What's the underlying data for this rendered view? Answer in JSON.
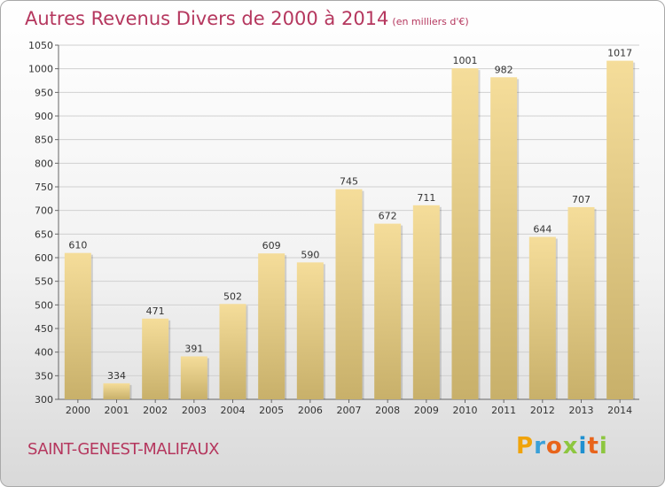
{
  "title": "Autres Revenus Divers de 2000 à 2014",
  "subtitle": "(en milliers d'€)",
  "town": "SAINT-GENEST-MALIFAUX",
  "logo": {
    "letters": [
      "P",
      "r",
      "o",
      "x",
      "i",
      "t",
      "i"
    ],
    "colors": [
      "#f0a30a",
      "#3aa0d8",
      "#e8641b",
      "#8dc63f",
      "#1e90d0",
      "#e8641b",
      "#8dc63f"
    ]
  },
  "colors": {
    "title": "#b5375e",
    "bar_light": "#f5dd9a",
    "bar_dark": "#c8b06a",
    "grid": "#d0d0d0"
  },
  "chart_data": {
    "type": "bar",
    "categories": [
      "2000",
      "2001",
      "2002",
      "2003",
      "2004",
      "2005",
      "2006",
      "2007",
      "2008",
      "2009",
      "2010",
      "2011",
      "2012",
      "2013",
      "2014"
    ],
    "values": [
      610,
      334,
      471,
      391,
      502,
      609,
      590,
      745,
      672,
      711,
      1001,
      982,
      644,
      707,
      1017
    ],
    "ylim": [
      300,
      1050
    ],
    "yticks": [
      300,
      350,
      400,
      450,
      500,
      550,
      600,
      650,
      700,
      750,
      800,
      850,
      900,
      950,
      1000,
      1050
    ],
    "grid": true
  }
}
